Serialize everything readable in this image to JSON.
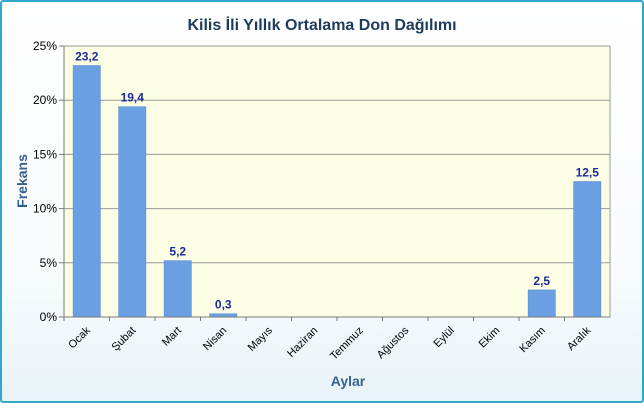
{
  "colors": {
    "bar": "#6a9fe3",
    "plot_bg": "#fbfde4",
    "frame": "#2fa8c9",
    "data_label": "#1e2a9a"
  },
  "chart_data": {
    "type": "bar",
    "title": "Kilis İli Yıllık Ortalama Don Dağılımı",
    "xlabel": "Aylar",
    "ylabel": "Frekans",
    "ylim": [
      0,
      25
    ],
    "y_ticks": [
      0,
      5,
      10,
      15,
      20,
      25
    ],
    "y_tick_labels": [
      "0%",
      "5%",
      "10%",
      "15%",
      "20%",
      "25%"
    ],
    "grid": true,
    "categories": [
      "Ocak",
      "Şubat",
      "Mart",
      "Nisan",
      "Mayıs",
      "Haziran",
      "Temmuz",
      "Ağustos",
      "Eylül",
      "Ekim",
      "Kasım",
      "Aralık"
    ],
    "values": [
      23.2,
      19.4,
      5.2,
      0.3,
      0,
      0,
      0,
      0,
      0,
      0,
      2.5,
      12.5
    ],
    "data_labels": [
      "23,2",
      "19,4",
      "5,2",
      "0,3",
      "",
      "",
      "",
      "",
      "",
      "",
      "2,5",
      "12,5"
    ]
  }
}
